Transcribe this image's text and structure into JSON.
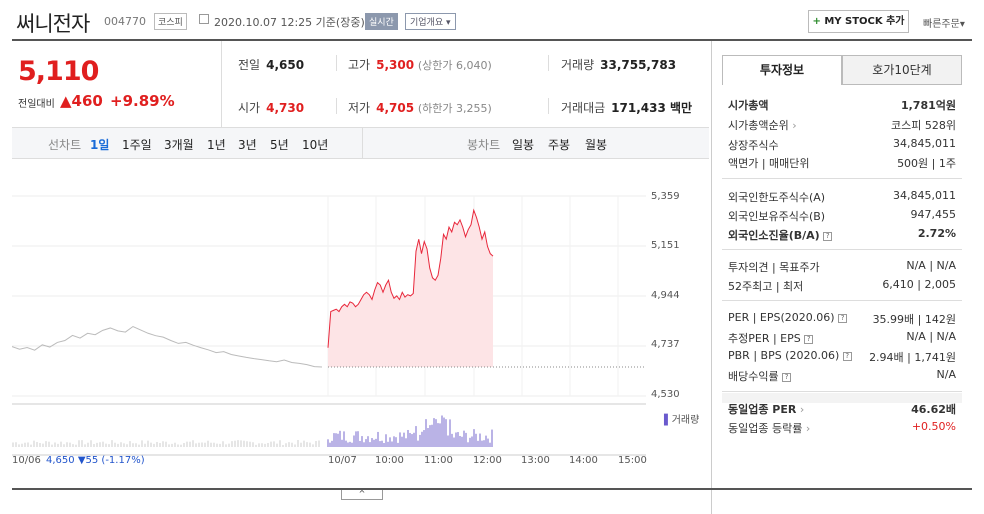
{
  "header": {
    "name": "써니전자",
    "code": "004770",
    "market": "코스피",
    "datetime": "2020.10.07 12:25 기준(장중)",
    "realtime": "실시간",
    "corp_info": "기업개요",
    "mystock": "MY STOCK 추가",
    "fast_order": "빠른주문"
  },
  "price": {
    "current": "5,110",
    "change_label": "전일대비",
    "change_value": "460",
    "change_pct": "+9.89%"
  },
  "stats": {
    "prev": {
      "label": "전일",
      "value": "4,650"
    },
    "high": {
      "label": "고가",
      "value": "5,300",
      "sub": "(상한가 6,040)"
    },
    "volume": {
      "label": "거래량",
      "value": "33,755,783"
    },
    "open": {
      "label": "시가",
      "value": "4,730"
    },
    "low": {
      "label": "저가",
      "value": "4,705",
      "sub": "(하한가 3,255)"
    },
    "amount": {
      "label": "거래대금",
      "value": "171,433 백만"
    }
  },
  "tabs": {
    "line_label": "선차트",
    "periods": [
      "1일",
      "1주일",
      "3개월",
      "1년",
      "3년",
      "5년",
      "10년"
    ],
    "candle_label": "봉차트",
    "candles": [
      "일봉",
      "주봉",
      "월봉"
    ]
  },
  "chart_data": {
    "type": "line",
    "y_ticks": [
      "5,359",
      "5,151",
      "4,944",
      "4,737",
      "4,530"
    ],
    "ylim": [
      4530,
      5359
    ],
    "x_ticks": [
      "10/06",
      "10/07",
      "10:00",
      "11:00",
      "12:00",
      "13:00",
      "14:00",
      "15:00"
    ],
    "prev_day_label": "10/06",
    "prev_day_close": "4,650",
    "prev_day_change": "▼55 (-1.17%)",
    "volume_label": "거래량",
    "series": [
      {
        "values": [
          4735,
          4724,
          4731,
          4720,
          4742,
          4733,
          4752,
          4760,
          4781,
          4770,
          4790,
          4784,
          4802,
          4812,
          4800,
          4795,
          4818,
          4804,
          4790,
          4780,
          4774,
          4760,
          4748,
          4752,
          4740,
          4730,
          4721,
          4710,
          4714,
          4702,
          4696,
          4690,
          4685,
          4681,
          4676,
          4672,
          4679,
          4669,
          4665,
          4660,
          4652,
          4650
        ]
      },
      {
        "values": [
          4730,
          4880,
          4885,
          4890,
          4880,
          4900,
          4910,
          4900,
          4920,
          4915,
          4900,
          4910,
          4930,
          4950,
          4960,
          4950,
          4930,
          4970,
          5000,
          4990,
          4960,
          4990,
          5010,
          4960,
          4935,
          4945,
          4930,
          4960,
          4940,
          4950,
          4945,
          4955,
          5130,
          5180,
          5120,
          5170,
          5140,
          5060,
          5020,
          5010,
          5030,
          5100,
          5200,
          5180,
          5230,
          5210,
          5250,
          5240,
          5260,
          5230,
          5190,
          5220,
          5240,
          5300,
          5270,
          5230,
          5180,
          5210,
          5150,
          5120,
          5110
        ]
      }
    ]
  },
  "side": {
    "tab_active": "투자정보",
    "tab_other": "호가10단계",
    "rows": [
      {
        "l": "시가총액",
        "v": "1,781억원",
        "bold": true
      },
      {
        "l": "시가총액순위",
        "v": "코스피 528위"
      },
      {
        "l": "상장주식수",
        "v": "34,845,011"
      },
      {
        "l": "액면가 | 매매단위",
        "v": "500원 | 1주"
      },
      {
        "l": "외국인한도주식수(A)",
        "v": "34,845,011"
      },
      {
        "l": "외국인보유주식수(B)",
        "v": "947,455"
      },
      {
        "l": "외국인소진율(B/A)",
        "v": "2.72%",
        "bold": true
      },
      {
        "l": "투자의견 | 목표주가",
        "v": "N/A | N/A"
      },
      {
        "l": "52주최고 | 최저",
        "v": "6,410 | 2,005"
      },
      {
        "l": "PER | EPS(2020.06)",
        "v": "35.99배 | 142원"
      },
      {
        "l": "추정PER | EPS",
        "v": "N/A | N/A"
      },
      {
        "l": "PBR | BPS (2020.06)",
        "v": "2.94배 | 1,741원"
      },
      {
        "l": "배당수익률",
        "v": "N/A"
      },
      {
        "l": "동일업종 PER",
        "v": "46.62배",
        "bold": true
      },
      {
        "l": "동일업종 등락률",
        "v": "+0.50%",
        "red": true
      }
    ]
  },
  "colors": {
    "up": "#e01f1f",
    "down": "#2255cc",
    "accent": "#1a6bd8"
  }
}
